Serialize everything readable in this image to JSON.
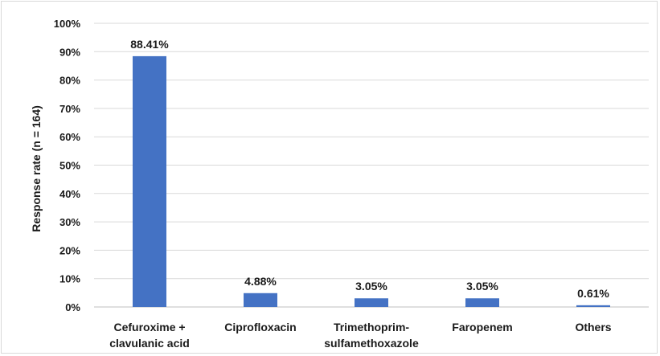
{
  "chart_data": {
    "type": "bar",
    "title": "",
    "xlabel": "",
    "ylabel": "Response rate (n = 164)",
    "ylim": [
      0,
      100
    ],
    "y_ticks": [
      "0%",
      "10%",
      "20%",
      "30%",
      "40%",
      "50%",
      "60%",
      "70%",
      "80%",
      "90%",
      "100%"
    ],
    "grid": "horizontal",
    "legend": "none",
    "bar_color": "#4472C4",
    "categories": [
      [
        "Cefuroxime +",
        "clavulanic acid"
      ],
      [
        "Ciprofloxacin"
      ],
      [
        "Trimethoprim-",
        "sulfamethoxazole"
      ],
      [
        "Faropenem"
      ],
      [
        "Others"
      ]
    ],
    "values": [
      88.41,
      4.88,
      3.05,
      3.05,
      0.61
    ],
    "data_labels": [
      "88.41%",
      "4.88%",
      "3.05%",
      "3.05%",
      "0.61%"
    ]
  }
}
